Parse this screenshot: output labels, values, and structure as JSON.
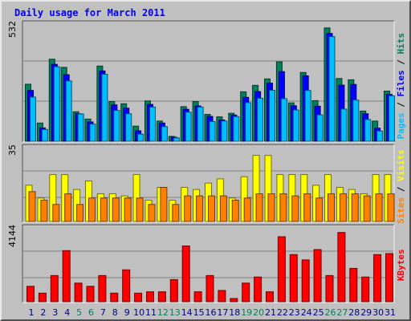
{
  "chart_data": {
    "type": "bar",
    "title": "Daily usage for March 2011",
    "categories": [
      "1",
      "2",
      "3",
      "4",
      "5",
      "6",
      "7",
      "8",
      "9",
      "10",
      "11",
      "12",
      "13",
      "14",
      "15",
      "16",
      "17",
      "18",
      "19",
      "20",
      "21",
      "22",
      "23",
      "24",
      "25",
      "26",
      "27",
      "28",
      "29",
      "30",
      "31"
    ],
    "weekend_days": [
      "5",
      "6",
      "12",
      "13",
      "19",
      "20",
      "26",
      "27"
    ],
    "panels": [
      {
        "id": "pages-files-hits",
        "max_label": "532",
        "ylim": [
          0,
          532
        ],
        "legend": [
          "Pages",
          "Files",
          "Hits"
        ],
        "series": [
          {
            "name": "Hits",
            "color": "#00805c",
            "values": [
              257,
              82,
              370,
              333,
              133,
              100,
              339,
              179,
              169,
              68,
              182,
              91,
              22,
              156,
              179,
              121,
              110,
              126,
              223,
              252,
              281,
              358,
              173,
              310,
              183,
              511,
              283,
              277,
              136,
              91,
              226
            ]
          },
          {
            "name": "Files",
            "color": "#0000ff",
            "values": [
              229,
              60,
              347,
              300,
              124,
              87,
              317,
              164,
              149,
              47,
              166,
              82,
              18,
              144,
              159,
              112,
              96,
              118,
              198,
              224,
              262,
              314,
              160,
              295,
              158,
              486,
              253,
              256,
              124,
              59,
              211
            ]
          },
          {
            "name": "Pages",
            "color": "#00bfff",
            "values": [
              199,
              53,
              336,
              272,
              123,
              77,
              302,
              139,
              124,
              32,
              154,
              66,
              15,
              131,
              154,
              89,
              91,
              111,
              174,
              194,
              230,
              192,
              141,
              229,
              119,
              472,
              145,
              186,
              98,
              46,
              205
            ]
          }
        ]
      },
      {
        "id": "sites-visits",
        "max_label": "35",
        "ylim": [
          0,
          35
        ],
        "legend": [
          "Sites",
          "Visits"
        ],
        "series": [
          {
            "name": "Visits",
            "color": "#ffff00",
            "values": [
              17,
              11,
              22,
              22,
              15,
              19,
              13,
              13,
              12,
              22,
              10,
              16,
              10,
              16,
              15,
              18,
              20,
              11,
              21,
              31,
              31,
              22,
              22,
              22,
              17,
              22,
              16,
              15,
              13,
              22,
              22
            ]
          },
          {
            "name": "Sites",
            "color": "#ff8000",
            "values": [
              14,
              10,
              8,
              13,
              8,
              11,
              11,
              11,
              11,
              11,
              8,
              16,
              8,
              12,
              12,
              12,
              12,
              10,
              11,
              13,
              13,
              13,
              12,
              13,
              11,
              13,
              13,
              13,
              12,
              13,
              13
            ]
          }
        ]
      },
      {
        "id": "kbytes",
        "max_label": "4144",
        "ylim": [
          0,
          4144
        ],
        "legend": [
          "KBytes"
        ],
        "series": [
          {
            "name": "KBytes",
            "color": "#ff0000",
            "values": [
              856,
              477,
              1454,
              2838,
              1035,
              857,
              1454,
              477,
              1771,
              477,
              552,
              552,
              1227,
              3097,
              552,
              1454,
              627,
              178,
              1035,
              1372,
              552,
              3608,
              2618,
              2323,
              2897,
              1454,
              3844,
              1852,
              1372,
              2618,
              2675
            ]
          }
        ]
      }
    ]
  },
  "colors": {
    "background": "#c0c0c0",
    "panel": "#c0c0c0",
    "title": "#0000ff",
    "weekday_label": "#000080",
    "weekend_label": "#00805c",
    "grid": "#808080"
  }
}
